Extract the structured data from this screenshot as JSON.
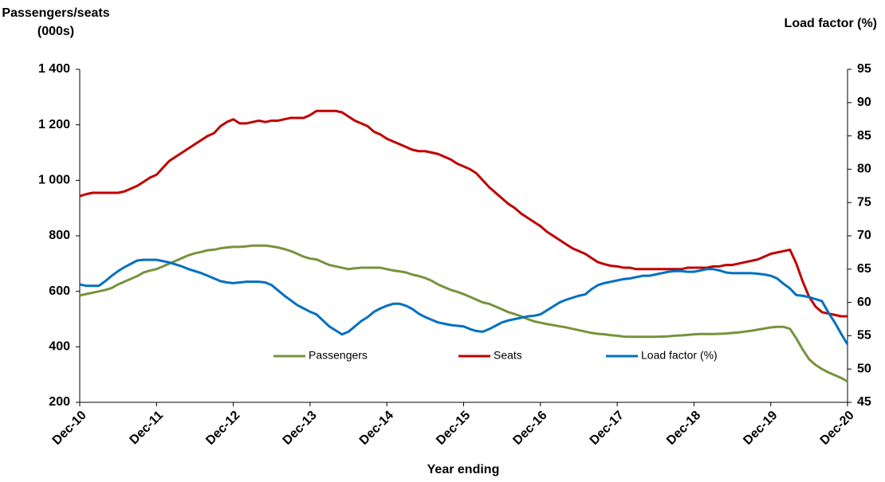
{
  "chart_data": {
    "type": "line",
    "y_label": [
      "Passengers/seats",
      "(000s)"
    ],
    "y2_label": "Load factor (%)",
    "x_label": "Year ending",
    "categories": [
      "Dec-10",
      null,
      null,
      null,
      null,
      null,
      null,
      null,
      null,
      null,
      null,
      null,
      "Dec-11",
      null,
      null,
      null,
      null,
      null,
      null,
      null,
      null,
      null,
      null,
      null,
      "Dec-12",
      null,
      null,
      null,
      null,
      null,
      null,
      null,
      null,
      null,
      null,
      null,
      "Dec-13",
      null,
      null,
      null,
      null,
      null,
      null,
      null,
      null,
      null,
      null,
      null,
      "Dec-14",
      null,
      null,
      null,
      null,
      null,
      null,
      null,
      null,
      null,
      null,
      null,
      "Dec-15",
      null,
      null,
      null,
      null,
      null,
      null,
      null,
      null,
      null,
      null,
      null,
      "Dec-16",
      null,
      null,
      null,
      null,
      null,
      null,
      null,
      null,
      null,
      null,
      null,
      "Dec-17",
      null,
      null,
      null,
      null,
      null,
      null,
      null,
      null,
      null,
      null,
      null,
      "Dec-18",
      null,
      null,
      null,
      null,
      null,
      null,
      null,
      null,
      null,
      null,
      null,
      "Dec-19",
      null,
      null,
      null,
      null,
      null,
      null,
      null,
      null,
      null,
      null,
      null,
      "Dec-20"
    ],
    "series": [
      {
        "name": "Passengers",
        "color": "#77933c",
        "values": [
          585,
          590,
          595,
          600,
          605,
          612,
          625,
          635,
          645,
          655,
          668,
          675,
          680,
          690,
          700,
          710,
          720,
          730,
          737,
          742,
          748,
          750,
          755,
          758,
          760,
          760,
          762,
          765,
          765,
          765,
          762,
          758,
          752,
          745,
          735,
          725,
          718,
          715,
          705,
          695,
          690,
          685,
          680,
          683,
          685,
          685,
          685,
          685,
          680,
          675,
          672,
          668,
          660,
          655,
          648,
          638,
          625,
          615,
          605,
          598,
          590,
          580,
          570,
          560,
          555,
          545,
          535,
          525,
          518,
          510,
          500,
          492,
          487,
          482,
          478,
          474,
          470,
          465,
          460,
          455,
          450,
          447,
          445,
          442,
          440,
          437,
          436,
          436,
          436,
          436,
          436,
          437,
          438,
          440,
          441,
          443,
          445,
          446,
          446,
          446,
          447,
          448,
          450,
          452,
          455,
          458,
          462,
          466,
          470,
          472,
          472,
          465,
          430,
          390,
          355,
          335,
          320,
          308,
          298,
          288,
          275
        ]
      },
      {
        "name": "Seats",
        "color": "#c00000",
        "values": [
          943,
          950,
          955,
          955,
          955,
          955,
          955,
          960,
          970,
          980,
          995,
          1010,
          1020,
          1045,
          1070,
          1085,
          1100,
          1115,
          1130,
          1145,
          1160,
          1170,
          1195,
          1210,
          1220,
          1205,
          1205,
          1210,
          1215,
          1210,
          1215,
          1215,
          1220,
          1225,
          1225,
          1225,
          1235,
          1250,
          1250,
          1250,
          1250,
          1245,
          1230,
          1215,
          1205,
          1195,
          1175,
          1165,
          1150,
          1140,
          1130,
          1120,
          1110,
          1105,
          1105,
          1100,
          1095,
          1085,
          1075,
          1060,
          1050,
          1040,
          1025,
          1000,
          975,
          955,
          935,
          915,
          900,
          880,
          865,
          850,
          835,
          815,
          800,
          785,
          770,
          755,
          745,
          735,
          720,
          705,
          698,
          692,
          690,
          685,
          685,
          680,
          680,
          680,
          680,
          680,
          680,
          680,
          680,
          685,
          685,
          685,
          685,
          690,
          690,
          695,
          695,
          700,
          705,
          710,
          715,
          725,
          735,
          740,
          745,
          750,
          700,
          635,
          580,
          545,
          525,
          520,
          515,
          510,
          510
        ]
      },
      {
        "name": "Load factor (%)",
        "color": "#0070c0",
        "axis": "y2",
        "values": [
          62.7,
          62.5,
          62.5,
          62.5,
          63.2,
          64,
          64.7,
          65.3,
          65.8,
          66.3,
          66.4,
          66.4,
          66.4,
          66.2,
          66,
          65.7,
          65.4,
          65,
          64.7,
          64.4,
          64,
          63.6,
          63.2,
          63,
          62.9,
          63,
          63.1,
          63.1,
          63.1,
          63,
          62.6,
          61.8,
          61,
          60.3,
          59.6,
          59.1,
          58.6,
          58.2,
          57.3,
          56.4,
          55.8,
          55.2,
          55.6,
          56.4,
          57.2,
          57.8,
          58.6,
          59.1,
          59.5,
          59.8,
          59.8,
          59.5,
          59,
          58.3,
          57.8,
          57.4,
          57,
          56.8,
          56.6,
          56.5,
          56.4,
          56,
          55.7,
          55.6,
          56,
          56.5,
          57,
          57.3,
          57.5,
          57.7,
          57.9,
          58,
          58.2,
          58.8,
          59.4,
          60,
          60.4,
          60.7,
          61,
          61.2,
          62,
          62.6,
          62.9,
          63.1,
          63.3,
          63.5,
          63.6,
          63.8,
          64,
          64,
          64.2,
          64.4,
          64.6,
          64.7,
          64.7,
          64.6,
          64.6,
          64.8,
          65,
          65,
          64.8,
          64.5,
          64.4,
          64.4,
          64.4,
          64.4,
          64.3,
          64.2,
          64,
          63.6,
          62.8,
          62.1,
          61.1,
          61,
          60.8,
          60.5,
          60.2,
          58.5,
          57,
          55.3,
          53.7
        ]
      }
    ],
    "ylim": [
      200,
      1400
    ],
    "yticks": [
      200,
      400,
      600,
      800,
      {
        "value": 1000,
        "label": "1 000"
      },
      {
        "value": 1200,
        "label": "1 200"
      },
      {
        "value": 1400,
        "label": "1 400"
      }
    ],
    "y2lim": [
      45,
      95
    ],
    "y2ticks": [
      45,
      50,
      55,
      60,
      65,
      70,
      75,
      80,
      85,
      90,
      95
    ],
    "grid": false,
    "legend": "lower center"
  }
}
